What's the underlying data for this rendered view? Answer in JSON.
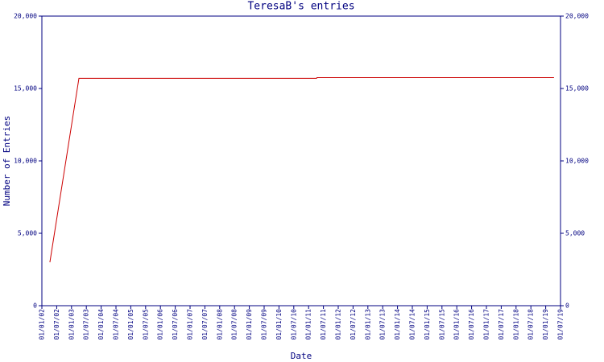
{
  "chart_data": {
    "type": "line",
    "title": "TeresaB's entries",
    "x_label": "Date",
    "y_label": "Number of Entries",
    "x": [
      2002.27,
      2003.25,
      2011.27,
      2011.28,
      2019.28
    ],
    "series": [
      {
        "name": "TeresaB",
        "color": "#cc0000",
        "values": [
          3000,
          15700,
          15700,
          15750,
          15750
        ]
      }
    ],
    "xlim": [
      2002,
      2019.5
    ],
    "xticks": [
      {
        "value": 2002,
        "label": "01/01/02"
      },
      {
        "value": 2002.5,
        "label": "01/07/02"
      },
      {
        "value": 2003,
        "label": "01/01/03"
      },
      {
        "value": 2003.5,
        "label": "01/07/03"
      },
      {
        "value": 2004,
        "label": "01/01/04"
      },
      {
        "value": 2004.5,
        "label": "01/07/04"
      },
      {
        "value": 2005,
        "label": "01/01/05"
      },
      {
        "value": 2005.5,
        "label": "01/07/05"
      },
      {
        "value": 2006,
        "label": "01/01/06"
      },
      {
        "value": 2006.5,
        "label": "01/07/06"
      },
      {
        "value": 2007,
        "label": "01/01/07"
      },
      {
        "value": 2007.5,
        "label": "01/07/07"
      },
      {
        "value": 2008,
        "label": "01/01/08"
      },
      {
        "value": 2008.5,
        "label": "01/07/08"
      },
      {
        "value": 2009,
        "label": "01/01/09"
      },
      {
        "value": 2009.5,
        "label": "01/07/09"
      },
      {
        "value": 2010,
        "label": "01/01/10"
      },
      {
        "value": 2010.5,
        "label": "01/07/10"
      },
      {
        "value": 2011,
        "label": "01/01/11"
      },
      {
        "value": 2011.5,
        "label": "01/07/11"
      },
      {
        "value": 2012,
        "label": "01/01/12"
      },
      {
        "value": 2012.5,
        "label": "01/07/12"
      },
      {
        "value": 2013,
        "label": "01/01/13"
      },
      {
        "value": 2013.5,
        "label": "01/07/13"
      },
      {
        "value": 2014,
        "label": "01/01/14"
      },
      {
        "value": 2014.5,
        "label": "01/07/14"
      },
      {
        "value": 2015,
        "label": "01/01/15"
      },
      {
        "value": 2015.5,
        "label": "01/07/15"
      },
      {
        "value": 2016,
        "label": "01/01/16"
      },
      {
        "value": 2016.5,
        "label": "01/07/16"
      },
      {
        "value": 2017,
        "label": "01/01/17"
      },
      {
        "value": 2017.5,
        "label": "01/07/17"
      },
      {
        "value": 2018,
        "label": "01/01/18"
      },
      {
        "value": 2018.5,
        "label": "01/07/18"
      },
      {
        "value": 2019,
        "label": "01/01/19"
      },
      {
        "value": 2019.5,
        "label": "01/07/19"
      }
    ],
    "ylim": [
      0,
      20000
    ],
    "yticks": [
      0,
      {
        "value": 5000,
        "label": "5,000"
      },
      {
        "value": 10000,
        "label": "10,000"
      },
      {
        "value": 15000,
        "label": "15,000"
      },
      {
        "value": 20000,
        "label": "20,000"
      }
    ],
    "grid": false
  }
}
